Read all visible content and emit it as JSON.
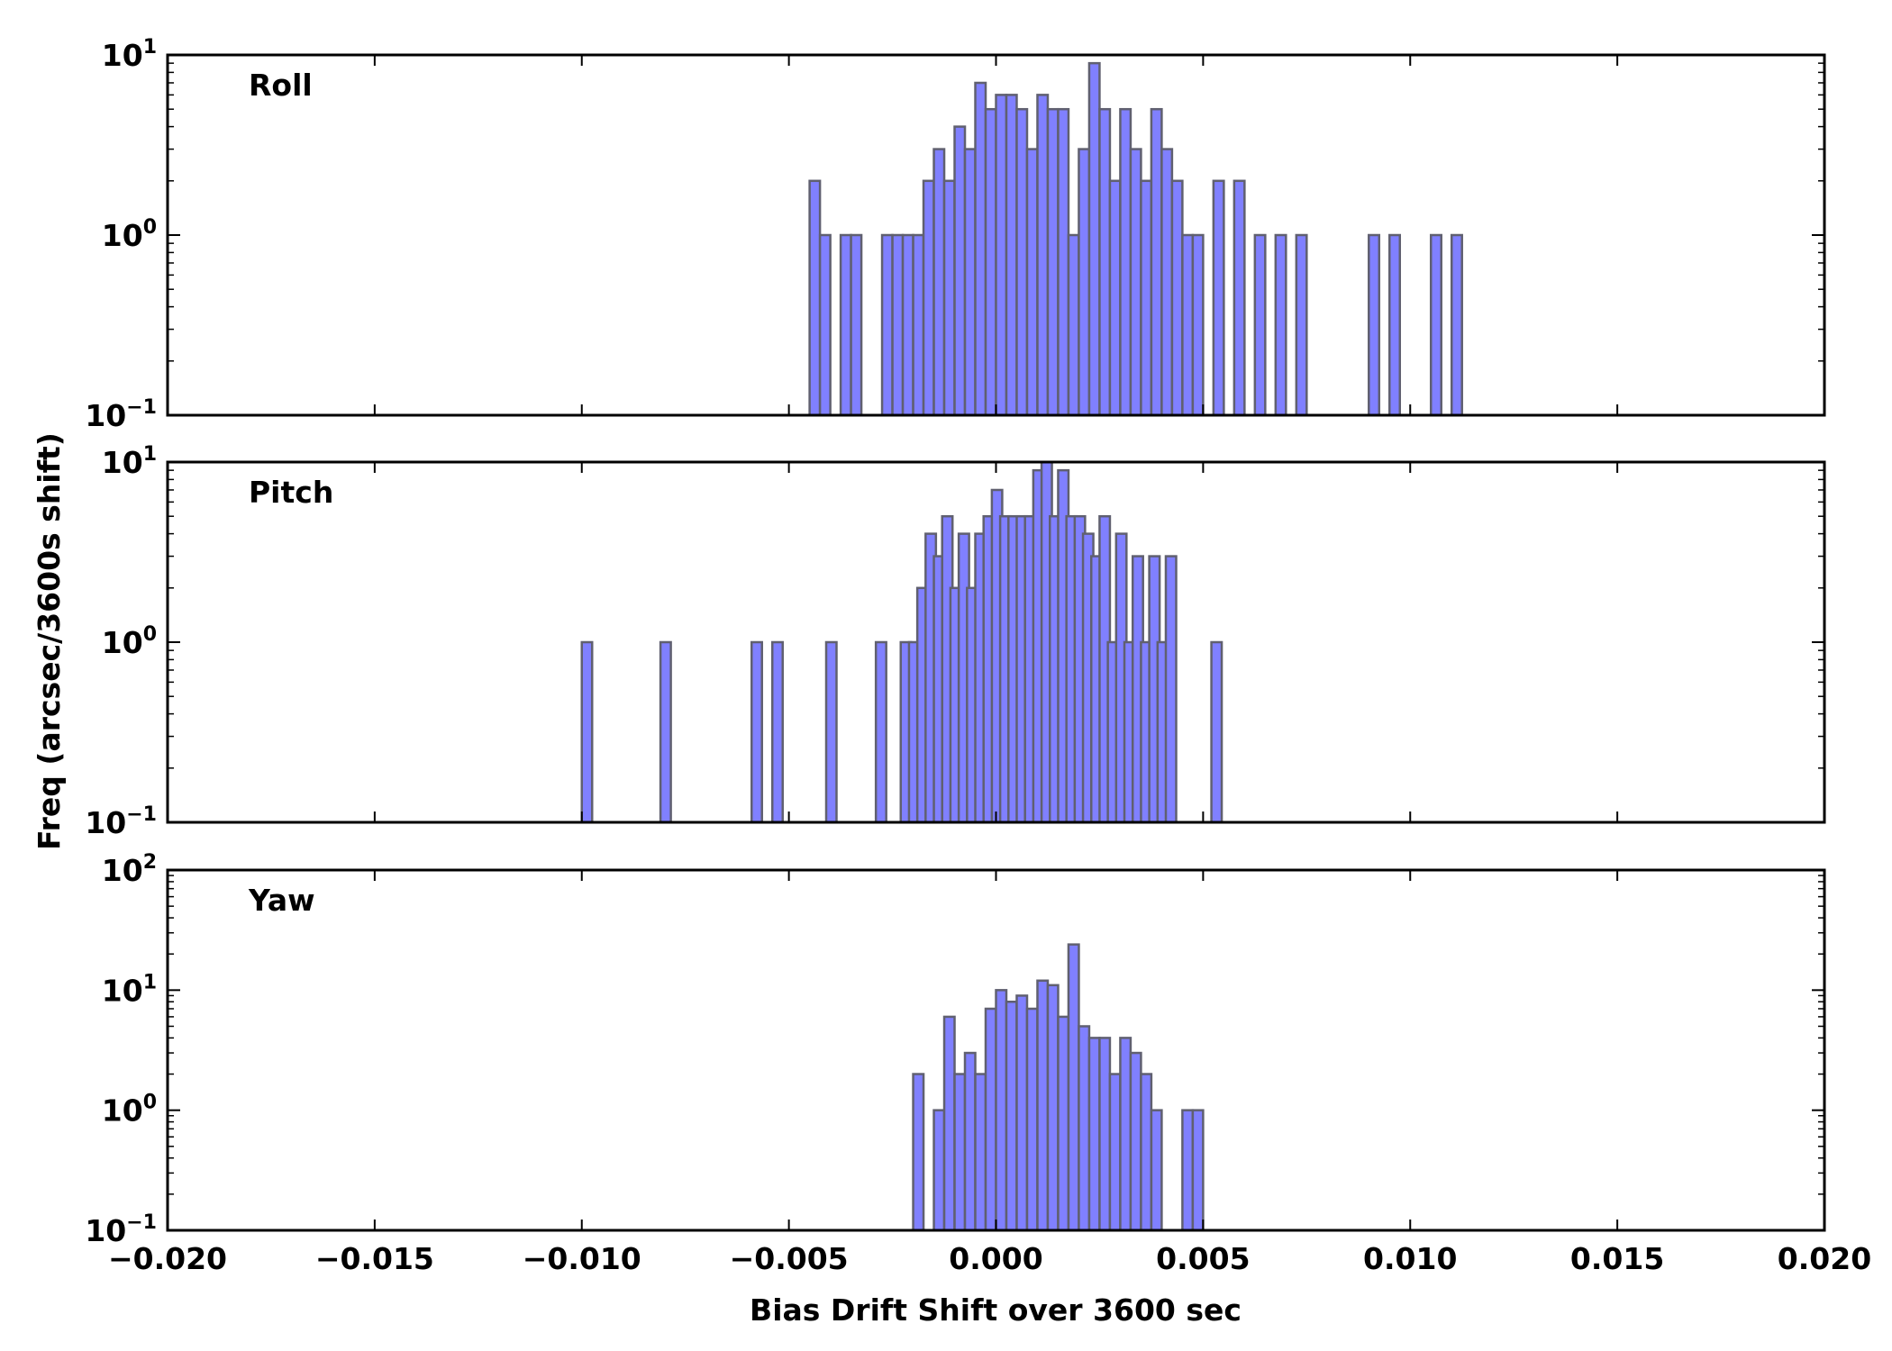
{
  "figure": {
    "xlabel": "Bias Drift Shift over 3600 sec",
    "ylabel": "Freq (arcsec/3600s shift)"
  },
  "chart_data": [
    {
      "type": "bar",
      "panel": "Roll",
      "label": "Roll",
      "xlim": [
        -0.02,
        0.02
      ],
      "ylim_log10": [
        -1,
        1
      ],
      "yscale": "log",
      "bin_width": 0.00025,
      "fill_color": "#8080ff",
      "edge_color": "#606070",
      "xticks": [
        "−0.020",
        "−0.015",
        "−0.010",
        "−0.005",
        "0.000",
        "0.005",
        "0.010",
        "0.015",
        "0.020"
      ],
      "yticks": [
        {
          "base": "10",
          "exp": "−1",
          "log10": -1
        },
        {
          "base": "10",
          "exp": "0",
          "log10": 0
        },
        {
          "base": "10",
          "exp": "1",
          "log10": 1
        }
      ],
      "bins": [
        [
          -0.0045,
          2
        ],
        [
          -0.00425,
          1
        ],
        [
          -0.00375,
          1
        ],
        [
          -0.0035,
          1
        ],
        [
          -0.00275,
          1
        ],
        [
          -0.0025,
          1
        ],
        [
          -0.00225,
          1
        ],
        [
          -0.002,
          1
        ],
        [
          -0.00175,
          2
        ],
        [
          -0.0015,
          3
        ],
        [
          -0.00125,
          2
        ],
        [
          -0.001,
          4
        ],
        [
          -0.00075,
          3
        ],
        [
          -0.0005,
          7
        ],
        [
          -0.00025,
          5
        ],
        [
          0.0,
          6
        ],
        [
          0.00025,
          6
        ],
        [
          0.0005,
          5
        ],
        [
          0.00075,
          3
        ],
        [
          0.001,
          6
        ],
        [
          0.00125,
          5
        ],
        [
          0.0015,
          5
        ],
        [
          0.00175,
          1
        ],
        [
          0.002,
          3
        ],
        [
          0.00225,
          9
        ],
        [
          0.0025,
          5
        ],
        [
          0.00275,
          2
        ],
        [
          0.003,
          5
        ],
        [
          0.00325,
          3
        ],
        [
          0.0035,
          2
        ],
        [
          0.00375,
          5
        ],
        [
          0.004,
          3
        ],
        [
          0.00425,
          2
        ],
        [
          0.0045,
          1
        ],
        [
          0.00475,
          1
        ],
        [
          0.00525,
          2
        ],
        [
          0.00575,
          2
        ],
        [
          0.00625,
          1
        ],
        [
          0.00675,
          1
        ],
        [
          0.00725,
          1
        ],
        [
          0.009,
          1
        ],
        [
          0.0095,
          1
        ],
        [
          0.0105,
          1
        ],
        [
          0.011,
          1
        ]
      ]
    },
    {
      "type": "bar",
      "panel": "Pitch",
      "label": "Pitch",
      "xlim": [
        -0.02,
        0.02
      ],
      "ylim_log10": [
        -1,
        1
      ],
      "yscale": "log",
      "bin_width": 0.00025,
      "fill_color": "#8080ff",
      "edge_color": "#606070",
      "xticks": [
        "−0.020",
        "−0.015",
        "−0.010",
        "−0.005",
        "0.000",
        "0.005",
        "0.010",
        "0.015",
        "0.020"
      ],
      "yticks": [
        {
          "base": "10",
          "exp": "−1",
          "log10": -1
        },
        {
          "base": "10",
          "exp": "0",
          "log10": 0
        },
        {
          "base": "10",
          "exp": "1",
          "log10": 1
        }
      ],
      "bins": [
        [
          -0.01,
          1
        ],
        [
          -0.0081,
          1
        ],
        [
          -0.0059,
          1
        ],
        [
          -0.0054,
          1
        ],
        [
          -0.0041,
          1
        ],
        [
          -0.0029,
          1
        ],
        [
          -0.0023,
          1
        ],
        [
          -0.0021,
          1
        ],
        [
          -0.0019,
          2
        ],
        [
          -0.0017,
          4
        ],
        [
          -0.0015,
          3
        ],
        [
          -0.0013,
          5
        ],
        [
          -0.0011,
          2
        ],
        [
          -0.0009,
          4
        ],
        [
          -0.0007,
          2
        ],
        [
          -0.0005,
          4
        ],
        [
          -0.0003,
          5
        ],
        [
          -0.0001,
          7
        ],
        [
          0.0001,
          5
        ],
        [
          0.0003,
          5
        ],
        [
          0.0005,
          5
        ],
        [
          0.0007,
          5
        ],
        [
          0.0009,
          9
        ],
        [
          0.0011,
          10
        ],
        [
          0.0013,
          5
        ],
        [
          0.0015,
          9
        ],
        [
          0.0017,
          5
        ],
        [
          0.0019,
          5
        ],
        [
          0.0021,
          4
        ],
        [
          0.0023,
          3
        ],
        [
          0.0025,
          5
        ],
        [
          0.0027,
          1
        ],
        [
          0.0029,
          4
        ],
        [
          0.0031,
          1
        ],
        [
          0.0033,
          3
        ],
        [
          0.0035,
          1
        ],
        [
          0.0037,
          3
        ],
        [
          0.0039,
          1
        ],
        [
          0.0041,
          3
        ],
        [
          0.0052,
          1
        ]
      ]
    },
    {
      "type": "bar",
      "panel": "Yaw",
      "label": "Yaw",
      "xlim": [
        -0.02,
        0.02
      ],
      "ylim_log10": [
        -1,
        2
      ],
      "yscale": "log",
      "bin_width": 0.00025,
      "fill_color": "#8080ff",
      "edge_color": "#606070",
      "xticks": [
        "−0.020",
        "−0.015",
        "−0.010",
        "−0.005",
        "0.000",
        "0.005",
        "0.010",
        "0.015",
        "0.020"
      ],
      "yticks": [
        {
          "base": "10",
          "exp": "−1",
          "log10": -1
        },
        {
          "base": "10",
          "exp": "0",
          "log10": 0
        },
        {
          "base": "10",
          "exp": "1",
          "log10": 1
        },
        {
          "base": "10",
          "exp": "2",
          "log10": 2
        }
      ],
      "bins": [
        [
          -0.002,
          2
        ],
        [
          -0.0015,
          1
        ],
        [
          -0.00125,
          6
        ],
        [
          -0.001,
          2
        ],
        [
          -0.00075,
          3
        ],
        [
          -0.0005,
          2
        ],
        [
          -0.00025,
          7
        ],
        [
          0.0,
          10
        ],
        [
          0.00025,
          8
        ],
        [
          0.0005,
          9
        ],
        [
          0.00075,
          7
        ],
        [
          0.001,
          12
        ],
        [
          0.00125,
          11
        ],
        [
          0.0015,
          6
        ],
        [
          0.00175,
          24
        ],
        [
          0.002,
          5
        ],
        [
          0.00225,
          4
        ],
        [
          0.0025,
          4
        ],
        [
          0.00275,
          2
        ],
        [
          0.003,
          4
        ],
        [
          0.00325,
          3
        ],
        [
          0.0035,
          2
        ],
        [
          0.00375,
          1
        ],
        [
          0.0045,
          1
        ],
        [
          0.00475,
          1
        ]
      ]
    }
  ]
}
